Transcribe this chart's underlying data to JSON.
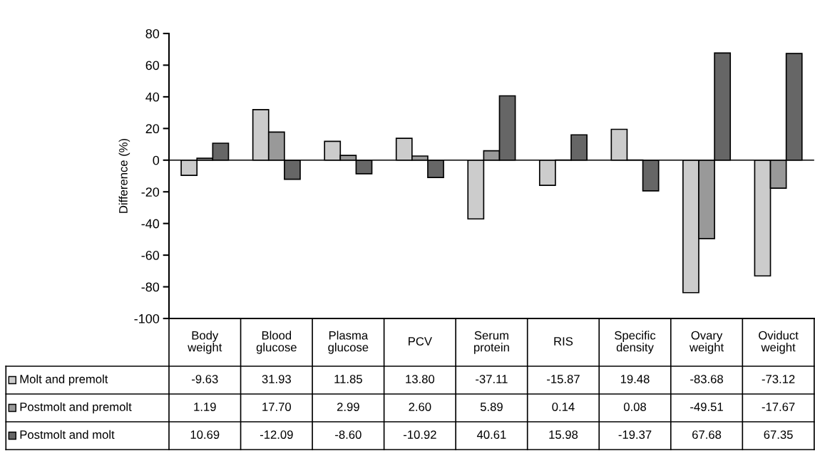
{
  "chart_data": {
    "type": "bar",
    "ylabel": "Difference (%)",
    "categories": [
      "Body\nweight",
      "Blood\nglucose",
      "Plasma\nglucose",
      "PCV",
      "Serum\nprotein",
      "RIS",
      "Specific\ndensity",
      "Ovary\nweight",
      "Oviduct\nweight"
    ],
    "series": [
      {
        "name": "Molt and premolt",
        "color": "#cccccc",
        "values": [
          -9.63,
          31.93,
          11.85,
          13.8,
          -37.11,
          -15.87,
          19.48,
          -83.68,
          -73.12
        ],
        "value_labels": [
          "-9.63",
          "31.93",
          "11.85",
          "13.80",
          "-37.11",
          "-15.87",
          "19.48",
          "-83.68",
          "-73.12"
        ]
      },
      {
        "name": "Postmolt and premolt",
        "color": "#999999",
        "values": [
          1.19,
          17.7,
          2.99,
          2.6,
          5.89,
          0.14,
          0.08,
          -49.51,
          -17.67
        ],
        "value_labels": [
          "1.19",
          "17.70",
          "2.99",
          "2.60",
          "5.89",
          "0.14",
          "0.08",
          "-49.51",
          "-17.67"
        ]
      },
      {
        "name": "Postmolt and molt",
        "color": "#666666",
        "values": [
          10.69,
          -12.09,
          -8.6,
          -10.92,
          40.61,
          15.98,
          -19.37,
          67.68,
          67.35
        ],
        "value_labels": [
          "10.69",
          "-12.09",
          "-8.60",
          "-10.92",
          "40.61",
          "15.98",
          "-19.37",
          "67.68",
          "67.35"
        ]
      }
    ],
    "ylim": [
      -100,
      80
    ],
    "yticks": [
      -100,
      -80,
      -60,
      -40,
      -20,
      0,
      20,
      40,
      60,
      80
    ],
    "ref_lines": [
      {
        "axis": "y",
        "value": 0,
        "color": "#000000"
      }
    ],
    "grid": false,
    "legend": "bottom left"
  }
}
